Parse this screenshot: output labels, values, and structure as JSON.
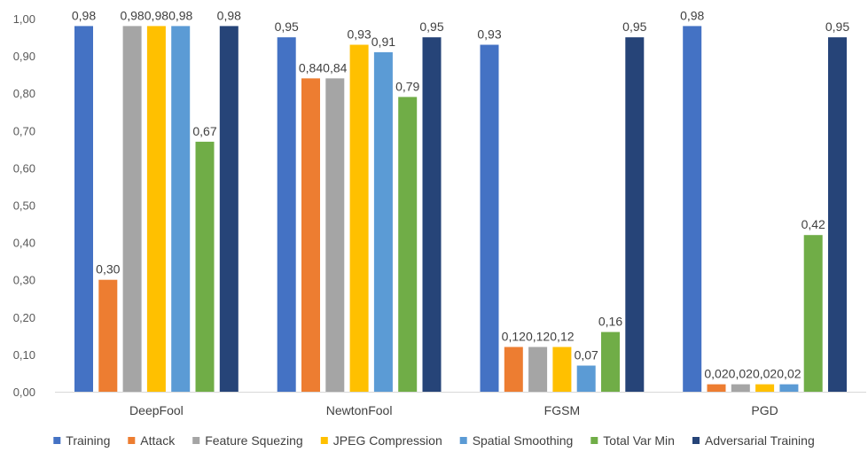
{
  "chart_data": {
    "type": "bar",
    "categories": [
      "DeepFool",
      "NewtonFool",
      "FGSM",
      "PGD"
    ],
    "series": [
      {
        "name": "Training",
        "color": "#4472C4",
        "values": [
          0.98,
          0.95,
          0.93,
          0.98
        ],
        "labels": [
          "0,98",
          "0,95",
          "0,93",
          "0,98"
        ]
      },
      {
        "name": "Attack",
        "color": "#ED7D31",
        "values": [
          0.3,
          0.84,
          0.12,
          0.02
        ],
        "labels": [
          "0,30",
          "0,84",
          "0,12",
          "0,02"
        ]
      },
      {
        "name": "Feature Squezing",
        "color": "#A5A5A5",
        "values": [
          0.98,
          0.84,
          0.12,
          0.02
        ],
        "labels": [
          "0,98",
          "0,84",
          "0,12",
          "0,02"
        ]
      },
      {
        "name": "JPEG Compression",
        "color": "#FFC000",
        "values": [
          0.98,
          0.93,
          0.12,
          0.02
        ],
        "labels": [
          "0,98",
          "0,93",
          "0,12",
          "0,02"
        ]
      },
      {
        "name": "Spatial Smoothing",
        "color": "#5B9BD5",
        "values": [
          0.98,
          0.91,
          0.07,
          0.02
        ],
        "labels": [
          "0,98",
          "0,91",
          "0,07",
          "0,02"
        ]
      },
      {
        "name": "Total Var Min",
        "color": "#70AD47",
        "values": [
          0.67,
          0.79,
          0.16,
          0.42
        ],
        "labels": [
          "0,67",
          "0,79",
          "0,16",
          "0,42"
        ]
      },
      {
        "name": "Adversarial Training",
        "color": "#264478",
        "values": [
          0.98,
          0.95,
          0.95,
          0.95
        ],
        "labels": [
          "0,98",
          "0,95",
          "0,95",
          "0,95"
        ]
      }
    ],
    "y_ticks": [
      "0,00",
      "0,10",
      "0,20",
      "0,30",
      "0,40",
      "0,50",
      "0,60",
      "0,70",
      "0,80",
      "0,90",
      "1,00"
    ],
    "ylim": [
      0,
      1.0
    ],
    "title": "",
    "xlabel": "",
    "ylabel": "",
    "grid": false,
    "legend_position": "bottom"
  }
}
